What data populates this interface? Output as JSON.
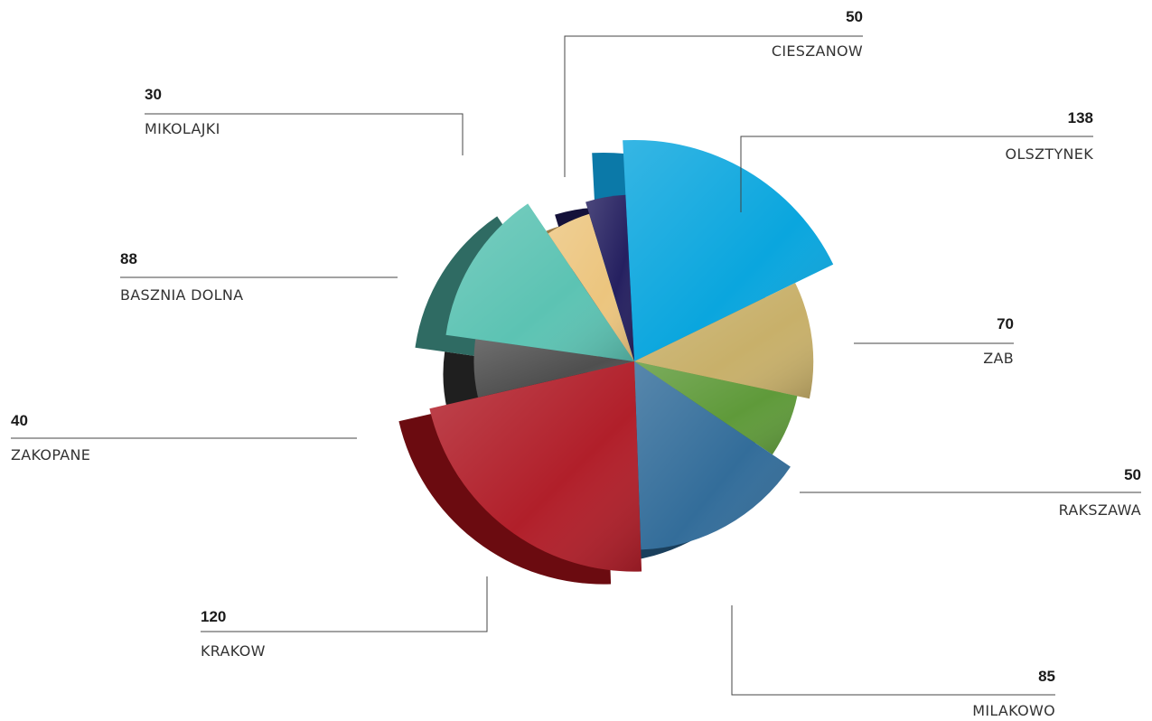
{
  "chart_data": {
    "type": "pie",
    "variant": "3D exploded polar rose",
    "title": "",
    "slices": [
      {
        "label": "OLSZTYNEK",
        "value": 138,
        "color": "#0aa6de",
        "side": "#0b79a8"
      },
      {
        "label": "ZAB",
        "value": 70,
        "color": "#c8b06a",
        "side": "#9b8550"
      },
      {
        "label": "RAKSZAWA",
        "value": 50,
        "color": "#5f9a3a",
        "side": "#3f6d26"
      },
      {
        "label": "MILAKOWO",
        "value": 85,
        "color": "#336d9a",
        "side": "#1a3f5c"
      },
      {
        "label": "KRAKOW",
        "value": 120,
        "color": "#b11f2a",
        "side": "#6b0b10"
      },
      {
        "label": "ZAKOPANE",
        "value": 40,
        "color": "#4f4f4f",
        "side": "#1f1f1f"
      },
      {
        "label": "BASZNIA DOLNA",
        "value": 88,
        "color": "#5cc3b3",
        "side": "#2f6b63"
      },
      {
        "label": "MIKOLAJKI",
        "value": 30,
        "color": "#ecc57e",
        "side": "#9c7b45"
      },
      {
        "label": "CIESZANOW",
        "value": 50,
        "color": "#252060",
        "side": "#14113a"
      }
    ]
  },
  "labels": {
    "olsztynek": {
      "value": "138",
      "name": "OLSZTYNEK"
    },
    "zab": {
      "value": "70",
      "name": "ZAB"
    },
    "rakszawa": {
      "value": "50",
      "name": "RAKSZAWA"
    },
    "milakowo": {
      "value": "85",
      "name": "MILAKOWO"
    },
    "krakow": {
      "value": "120",
      "name": "KRAKOW"
    },
    "zakopane": {
      "value": "40",
      "name": "ZAKOPANE"
    },
    "basznia": {
      "value": "88",
      "name": "BASZNIA DOLNA"
    },
    "mikolajki": {
      "value": "30",
      "name": "MIKOLAJKI"
    },
    "cieszanow": {
      "value": "50",
      "name": "CIESZANOW"
    }
  }
}
